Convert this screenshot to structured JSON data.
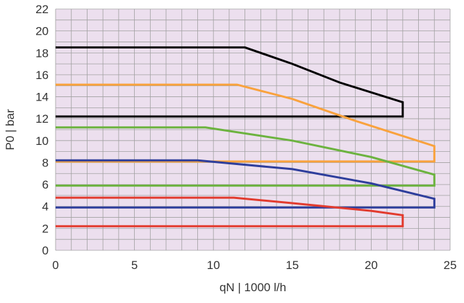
{
  "chart_data": {
    "type": "line",
    "title": "",
    "xlabel": "qN | 1000 l/h",
    "ylabel": "P0 | bar",
    "xlim": [
      0,
      25
    ],
    "ylim": [
      0,
      22
    ],
    "x_ticks": [
      "0",
      "5",
      "10",
      "15",
      "20",
      "25"
    ],
    "y_ticks": [
      "0",
      "2",
      "4",
      "6",
      "8",
      "10",
      "12",
      "14",
      "16",
      "18",
      "20",
      "22"
    ],
    "grid": true,
    "legend": "none",
    "background_color": "#ECDFEE",
    "grid_color": "#A0A0A0",
    "series": [
      {
        "color": "#000000",
        "points": [
          [
            0,
            18.5
          ],
          [
            12,
            18.5
          ],
          [
            15,
            17.0
          ],
          [
            18,
            15.3
          ],
          [
            22,
            13.5
          ],
          [
            22,
            12.2
          ],
          [
            0,
            12.2
          ]
        ]
      },
      {
        "color": "#F9A23D",
        "points": [
          [
            0,
            15.1
          ],
          [
            11.5,
            15.1
          ],
          [
            15,
            13.8
          ],
          [
            19,
            11.8
          ],
          [
            24,
            9.5
          ],
          [
            24,
            8.1
          ],
          [
            0,
            8.1
          ]
        ]
      },
      {
        "color": "#6CB33F",
        "points": [
          [
            0,
            11.2
          ],
          [
            9.5,
            11.2
          ],
          [
            15,
            10.0
          ],
          [
            20,
            8.5
          ],
          [
            24,
            6.9
          ],
          [
            24,
            5.9
          ],
          [
            0,
            5.9
          ]
        ]
      },
      {
        "color": "#2E3E9C",
        "points": [
          [
            0,
            8.2
          ],
          [
            9,
            8.2
          ],
          [
            15,
            7.4
          ],
          [
            20,
            6.1
          ],
          [
            24,
            4.7
          ],
          [
            24,
            3.9
          ],
          [
            0,
            3.9
          ]
        ]
      },
      {
        "color": "#E23B2E",
        "points": [
          [
            0,
            4.8
          ],
          [
            11.3,
            4.8
          ],
          [
            15,
            4.3
          ],
          [
            20,
            3.6
          ],
          [
            22,
            3.2
          ],
          [
            22,
            2.2
          ],
          [
            0,
            2.2
          ]
        ]
      }
    ]
  }
}
